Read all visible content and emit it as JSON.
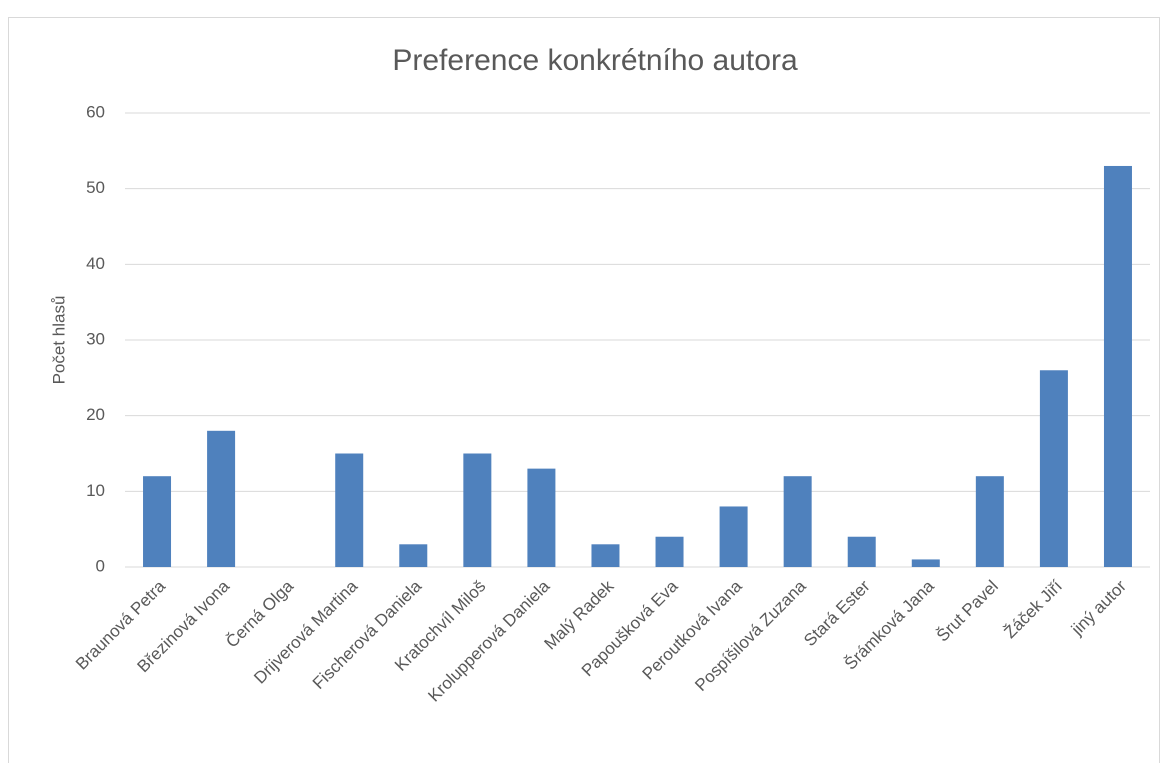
{
  "chart_data": {
    "type": "bar",
    "title": "Preference konkrétního autora",
    "y_label": "Počet hlasů",
    "categories": [
      "Braunová Petra",
      "Březinová Ivona",
      "Černá Olga",
      "Drijverová Martina",
      "Fischerová Daniela",
      "Kratochvíl Miloš",
      "Krolupperová Daniela",
      "Malý Radek",
      "Papoušková Eva",
      "Peroutková Ivana",
      "Pospíšilová Zuzana",
      "Stará Ester",
      "Šrámková Jana",
      "Šrut Pavel",
      "Žáček Jiří",
      "jiný autor"
    ],
    "values": [
      12,
      18,
      0,
      15,
      3,
      15,
      13,
      3,
      4,
      8,
      12,
      4,
      1,
      12,
      26,
      53
    ],
    "color": "#4f81bd",
    "ylim": [
      0,
      60
    ],
    "yticks": [
      0,
      10,
      20,
      30,
      40,
      50,
      60
    ],
    "grid": true
  }
}
